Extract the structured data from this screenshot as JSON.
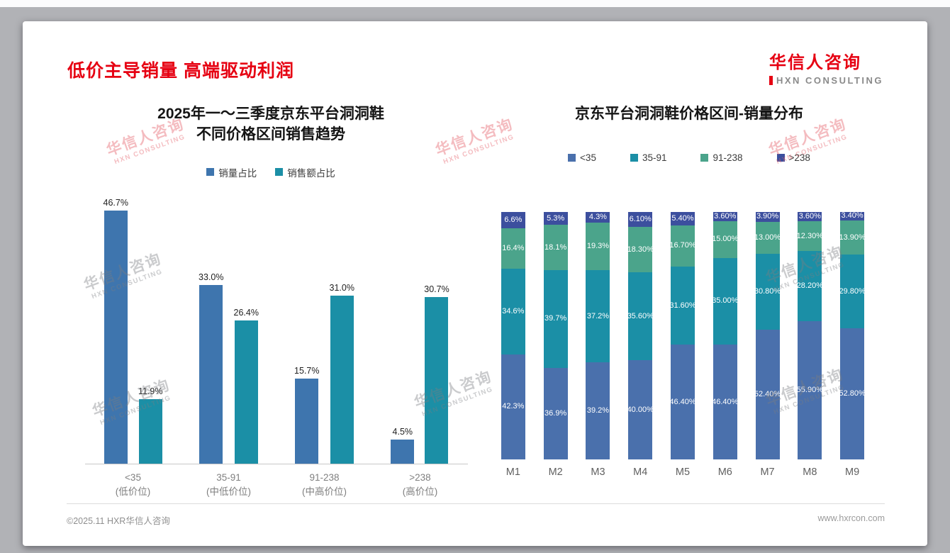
{
  "page": {
    "title": "低价主导销量 高端驱动利润",
    "logo": {
      "cn": "华信人咨询",
      "en": "HXN CONSULTING"
    },
    "watermark": {
      "cn": "华信人咨询",
      "en": "HXN CONSULTING"
    },
    "footer": {
      "left": "©2025.11 HXR华信人咨询",
      "right": "www.hxrcon.com"
    }
  },
  "chart_data": [
    {
      "type": "bar",
      "title_lines": [
        "2025年一～三季度京东平台洞洞鞋",
        "不同价格区间销售趋势"
      ],
      "categories": [
        "<35",
        "35-91",
        "91-238",
        ">238"
      ],
      "category_sublabels": [
        "(低价位)",
        "(中低价位)",
        "(中高价位)",
        "(高价位)"
      ],
      "ylim": [
        0,
        50
      ],
      "grid": false,
      "legend_position": "top",
      "series": [
        {
          "name": "销量占比",
          "color": "#3e75ae",
          "values": [
            46.7,
            33.0,
            15.7,
            4.5
          ]
        },
        {
          "name": "销售额占比",
          "color": "#1b8fa6",
          "values": [
            11.9,
            26.4,
            31.0,
            30.7
          ]
        }
      ],
      "labels": [
        [
          "46.7%",
          "33.0%",
          "15.7%",
          "4.5%"
        ],
        [
          "11.9%",
          "26.4%",
          "31.0%",
          "30.7%"
        ]
      ]
    },
    {
      "type": "stacked-bar",
      "title": "京东平台洞洞鞋价格区间-销量分布",
      "categories": [
        "M1",
        "M2",
        "M3",
        "M4",
        "M5",
        "M6",
        "M7",
        "M8",
        "M9"
      ],
      "ylim": [
        0,
        100
      ],
      "legend_position": "top",
      "series": [
        {
          "name": "<35",
          "color": "#4a70ac",
          "values": [
            42.3,
            36.9,
            39.2,
            40.0,
            46.4,
            46.4,
            52.4,
            55.9,
            52.8
          ],
          "labels": [
            "42.3%",
            "36.9%",
            "39.2%",
            "40.00%",
            "46.40%",
            "46.40%",
            "52.40%",
            "55.90%",
            "52.80%"
          ]
        },
        {
          "name": "35-91",
          "color": "#1b8fa6",
          "values": [
            34.6,
            39.7,
            37.2,
            35.6,
            31.6,
            35.0,
            30.8,
            28.2,
            29.8
          ],
          "labels": [
            "34.6%",
            "39.7%",
            "37.2%",
            "35.60%",
            "31.60%",
            "35.00%",
            "30.80%",
            "28.20%",
            "29.80%"
          ]
        },
        {
          "name": "91-238",
          "color": "#4ba48b",
          "values": [
            16.4,
            18.1,
            19.3,
            18.3,
            16.7,
            15.0,
            13.0,
            12.3,
            13.9
          ],
          "labels": [
            "16.4%",
            "18.1%",
            "19.3%",
            "18.30%",
            "16.70%",
            "15.00%",
            "13.00%",
            "12.30%",
            "13.90%"
          ]
        },
        {
          "name": ">238",
          "color": "#3c4f9e",
          "values": [
            6.6,
            5.3,
            4.3,
            6.1,
            5.4,
            3.6,
            3.9,
            3.6,
            3.4
          ],
          "labels": [
            "6.6%",
            "5.3%",
            "4.3%",
            "6.10%",
            "5.40%",
            "3.60%",
            "3.90%",
            "3.60%",
            "3.40%"
          ]
        }
      ]
    }
  ]
}
